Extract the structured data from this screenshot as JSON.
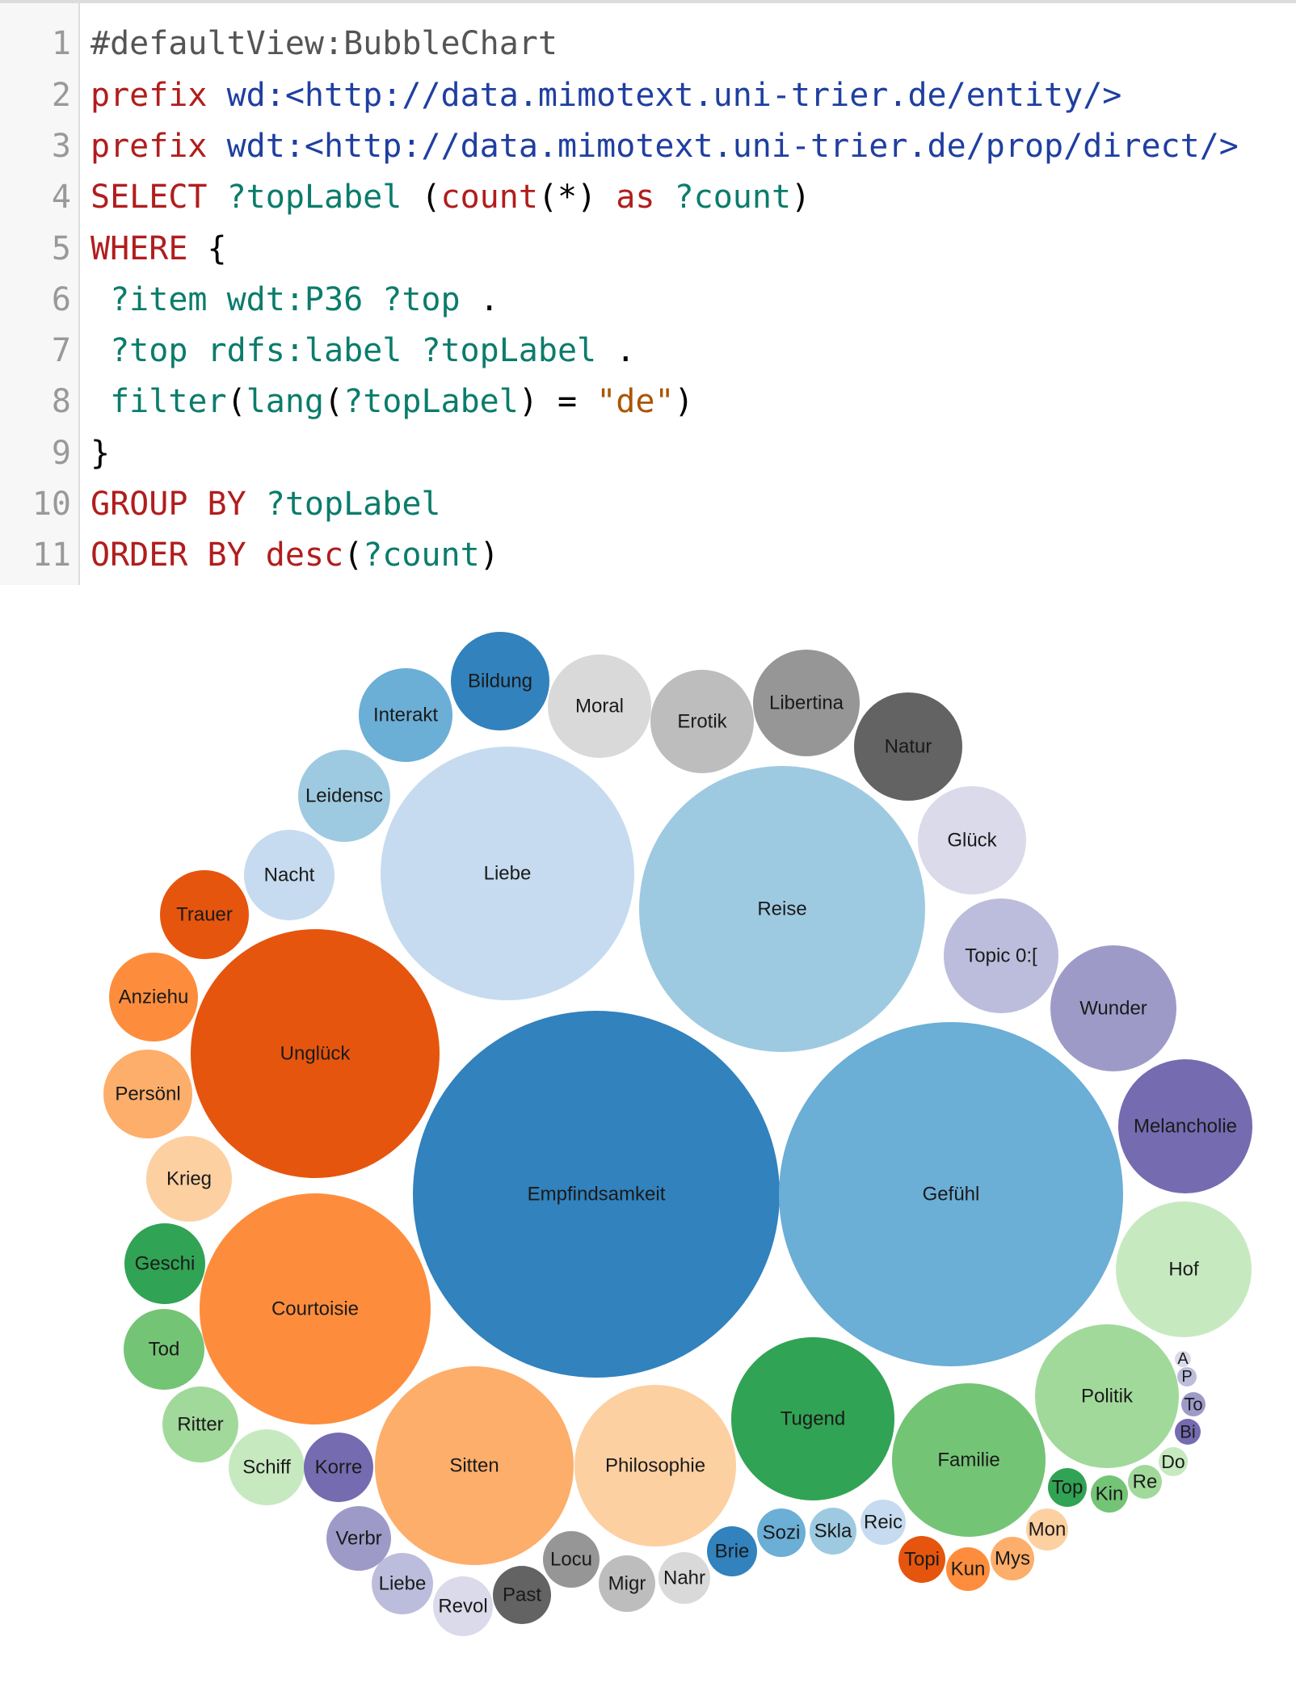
{
  "editor": {
    "lines": [
      {
        "num": "1",
        "tokens": [
          {
            "text": "#defaultView:BubbleChart",
            "type": "comment"
          }
        ]
      },
      {
        "num": "2",
        "tokens": [
          {
            "text": "prefix",
            "type": "keyword"
          },
          {
            "text": " ",
            "type": "plain"
          },
          {
            "text": "wd:<http://data.mimotext.uni-trier.de/entity/>",
            "type": "uri"
          }
        ]
      },
      {
        "num": "3",
        "tokens": [
          {
            "text": "prefix",
            "type": "keyword"
          },
          {
            "text": " ",
            "type": "plain"
          },
          {
            "text": "wdt:<http://data.mimotext.uni-trier.de/prop/direct/>",
            "type": "uri"
          }
        ]
      },
      {
        "num": "4",
        "tokens": [
          {
            "text": "SELECT",
            "type": "keyword"
          },
          {
            "text": " ",
            "type": "plain"
          },
          {
            "text": "?topLabel",
            "type": "var"
          },
          {
            "text": " (",
            "type": "plain"
          },
          {
            "text": "count",
            "type": "keyword"
          },
          {
            "text": "(*) ",
            "type": "plain"
          },
          {
            "text": "as",
            "type": "keyword"
          },
          {
            "text": " ",
            "type": "plain"
          },
          {
            "text": "?count",
            "type": "var"
          },
          {
            "text": ")",
            "type": "plain"
          }
        ]
      },
      {
        "num": "5",
        "tokens": [
          {
            "text": "WHERE",
            "type": "keyword"
          },
          {
            "text": " {",
            "type": "plain"
          }
        ]
      },
      {
        "num": "6",
        "tokens": [
          {
            "text": " ?item wdt:P36 ?top",
            "type": "var"
          },
          {
            "text": " .",
            "type": "plain"
          }
        ]
      },
      {
        "num": "7",
        "tokens": [
          {
            "text": " ?top rdfs:label ?topLabel",
            "type": "var"
          },
          {
            "text": " .",
            "type": "plain"
          }
        ]
      },
      {
        "num": "8",
        "tokens": [
          {
            "text": " ",
            "type": "plain"
          },
          {
            "text": "filter",
            "type": "var"
          },
          {
            "text": "(",
            "type": "plain"
          },
          {
            "text": "lang",
            "type": "var"
          },
          {
            "text": "(",
            "type": "plain"
          },
          {
            "text": "?topLabel",
            "type": "var"
          },
          {
            "text": ") = ",
            "type": "plain"
          },
          {
            "text": "\"de\"",
            "type": "string"
          },
          {
            "text": ")",
            "type": "plain"
          }
        ]
      },
      {
        "num": "9",
        "tokens": [
          {
            "text": "}",
            "type": "plain"
          }
        ]
      },
      {
        "num": "10",
        "tokens": [
          {
            "text": "GROUP BY",
            "type": "keyword"
          },
          {
            "text": " ",
            "type": "plain"
          },
          {
            "text": "?topLabel",
            "type": "var"
          }
        ]
      },
      {
        "num": "11",
        "tokens": [
          {
            "text": "ORDER BY",
            "type": "keyword"
          },
          {
            "text": " ",
            "type": "plain"
          },
          {
            "text": "desc",
            "type": "keyword"
          },
          {
            "text": "(",
            "type": "plain"
          },
          {
            "text": "?count",
            "type": "var"
          },
          {
            "text": ")",
            "type": "plain"
          }
        ]
      }
    ]
  },
  "chart_data": {
    "type": "bubble",
    "title": "",
    "bubbles": [
      {
        "label": "Empfindsamkeit",
        "color": "#3182bd"
      },
      {
        "label": "Gefühl",
        "color": "#6baed6"
      },
      {
        "label": "Reise",
        "color": "#9ecae1"
      },
      {
        "label": "Liebe",
        "color": "#c6dbef"
      },
      {
        "label": "Unglück",
        "color": "#e6550d"
      },
      {
        "label": "Courtoisie",
        "color": "#fd8d3c"
      },
      {
        "label": "Sitten",
        "color": "#fdae6b"
      },
      {
        "label": "Philosophie",
        "color": "#fdd0a2"
      },
      {
        "label": "Tugend",
        "color": "#31a354"
      },
      {
        "label": "Familie",
        "color": "#74c476"
      },
      {
        "label": "Politik",
        "color": "#a1d99b"
      },
      {
        "label": "Hof",
        "color": "#c7e9c0"
      },
      {
        "label": "Melancholie",
        "color": "#756bb1"
      },
      {
        "label": "Wunder",
        "color": "#9e9ac8"
      },
      {
        "label": "Topic 0:[",
        "color": "#bcbddc"
      },
      {
        "label": "Glück",
        "color": "#dadaeb"
      },
      {
        "label": "Natur",
        "color": "#636363"
      },
      {
        "label": "Libertina",
        "color": "#969696"
      },
      {
        "label": "Erotik",
        "color": "#bdbdbd"
      },
      {
        "label": "Moral",
        "color": "#d9d9d9"
      },
      {
        "label": "Bildung",
        "color": "#3182bd"
      },
      {
        "label": "Interakt",
        "color": "#6baed6"
      },
      {
        "label": "Leidensc",
        "color": "#9ecae1"
      },
      {
        "label": "Nacht",
        "color": "#c6dbef"
      },
      {
        "label": "Trauer",
        "color": "#e6550d"
      },
      {
        "label": "Anziehu",
        "color": "#fd8d3c"
      },
      {
        "label": "Persönl",
        "color": "#fdae6b"
      },
      {
        "label": "Krieg",
        "color": "#fdd0a2"
      },
      {
        "label": "Geschi",
        "color": "#31a354"
      },
      {
        "label": "Tod",
        "color": "#74c476"
      },
      {
        "label": "Ritter",
        "color": "#a1d99b"
      },
      {
        "label": "Schiff",
        "color": "#c7e9c0"
      },
      {
        "label": "Korre",
        "color": "#756bb1"
      },
      {
        "label": "Verbr",
        "color": "#9e9ac8"
      },
      {
        "label": "Liebe",
        "color": "#bcbddc"
      },
      {
        "label": "Revol",
        "color": "#dadaeb"
      },
      {
        "label": "Past",
        "color": "#636363"
      },
      {
        "label": "Locu",
        "color": "#969696"
      },
      {
        "label": "Migr",
        "color": "#bdbdbd"
      },
      {
        "label": "Nahr",
        "color": "#d9d9d9"
      },
      {
        "label": "Brie",
        "color": "#3182bd"
      },
      {
        "label": "Sozi",
        "color": "#6baed6"
      },
      {
        "label": "Skla",
        "color": "#9ecae1"
      },
      {
        "label": "Reic",
        "color": "#c6dbef"
      },
      {
        "label": "Topi",
        "color": "#e6550d"
      },
      {
        "label": "Kun",
        "color": "#fd8d3c"
      },
      {
        "label": "Mys",
        "color": "#fdae6b"
      },
      {
        "label": "Mon",
        "color": "#fdd0a2"
      },
      {
        "label": "Top",
        "color": "#31a354"
      },
      {
        "label": "Kin",
        "color": "#74c476"
      },
      {
        "label": "Re",
        "color": "#a1d99b"
      },
      {
        "label": "Do",
        "color": "#c7e9c0"
      },
      {
        "label": "Bi",
        "color": "#756bb1"
      },
      {
        "label": "To",
        "color": "#9e9ac8"
      },
      {
        "label": "P",
        "color": "#bcbddc"
      },
      {
        "label": "A",
        "color": "#dadaeb"
      }
    ]
  }
}
